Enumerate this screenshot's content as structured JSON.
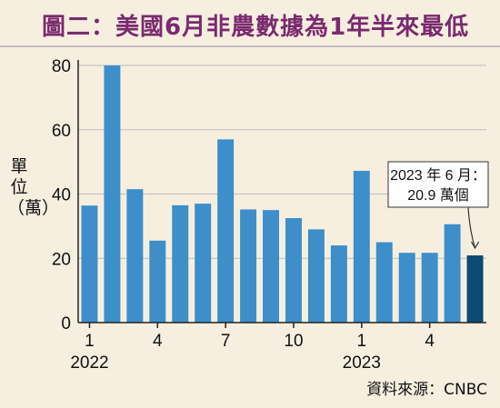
{
  "title": "圖二：美國6月非農數據為1年半來最低",
  "source": "資料來源：CNBC",
  "chart_data": {
    "type": "bar",
    "title": "圖二：美國6月非農數據為1年半來最低",
    "ylabel": "單位（萬）",
    "xlabel": "",
    "ylim": [
      0,
      80
    ],
    "yticks": [
      0,
      20,
      40,
      60,
      80
    ],
    "grid": true,
    "categories": [
      "2022-01",
      "2022-02",
      "2022-03",
      "2022-04",
      "2022-05",
      "2022-06",
      "2022-07",
      "2022-08",
      "2022-09",
      "2022-10",
      "2022-11",
      "2022-12",
      "2023-01",
      "2023-02",
      "2023-03",
      "2023-04",
      "2023-05",
      "2023-06"
    ],
    "values": [
      36.4,
      80.0,
      41.5,
      25.5,
      36.5,
      37.0,
      57.0,
      35.2,
      35.0,
      32.5,
      29.0,
      24.0,
      47.2,
      25.0,
      21.7,
      21.7,
      30.6,
      20.9
    ],
    "xtick_labels": [
      {
        "index": 0,
        "label": "1"
      },
      {
        "index": 3,
        "label": "4"
      },
      {
        "index": 6,
        "label": "7"
      },
      {
        "index": 9,
        "label": "10"
      },
      {
        "index": 12,
        "label": "1"
      },
      {
        "index": 15,
        "label": "4"
      }
    ],
    "year_labels": [
      {
        "index": 0,
        "label": "2022"
      },
      {
        "index": 12,
        "label": "2023"
      }
    ],
    "highlight_index": 17,
    "colors": {
      "bar": "#3d8ec9",
      "highlight": "#0d4a74",
      "grid": "#bdbdbd",
      "axis": "#222222"
    },
    "annotation": {
      "index": 17,
      "lines": [
        "2023 年 6 月：",
        "20.9 萬個"
      ]
    }
  }
}
